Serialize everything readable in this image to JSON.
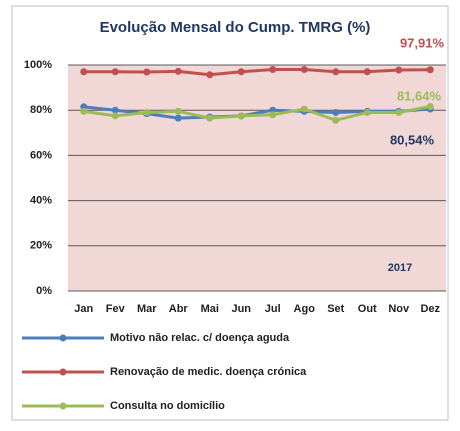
{
  "chart_data": {
    "type": "line",
    "title": "Evolução Mensal do Cump. TMRG (%)",
    "annotation": "2017",
    "categories": [
      "Jan",
      "Fev",
      "Mar",
      "Abr",
      "Mai",
      "Jun",
      "Jul",
      "Ago",
      "Set",
      "Out",
      "Nov",
      "Dez"
    ],
    "series": [
      {
        "name": "Motivo não relac. c/ doença aguda",
        "color": "#4a7ebb",
        "label_color": "#1f3864",
        "values": [
          81.5,
          80,
          78.5,
          76.5,
          77,
          77.5,
          80,
          79.5,
          79,
          79.5,
          79.5,
          80.54
        ],
        "value_labels": [
          null,
          null,
          null,
          null,
          null,
          null,
          null,
          null,
          null,
          null,
          null,
          "80,54%"
        ]
      },
      {
        "name": "Renovação de medic. doença crónica",
        "color": "#c0504d",
        "label_color": "#c0504d",
        "values": [
          97,
          97,
          96.9,
          97.2,
          95.7,
          97,
          98,
          98,
          97,
          97,
          97.8,
          97.91
        ],
        "value_labels": [
          null,
          null,
          null,
          null,
          null,
          null,
          null,
          null,
          null,
          null,
          null,
          "97,91%"
        ]
      },
      {
        "name": "Consulta no domicílio",
        "color": "#9bbb59",
        "label_color": "#9bbb59",
        "values": [
          79.5,
          77.5,
          79,
          79.5,
          76.5,
          77.5,
          78,
          80.5,
          75.5,
          79,
          79,
          81.64
        ],
        "value_labels": [
          null,
          null,
          null,
          null,
          null,
          null,
          null,
          null,
          null,
          null,
          null,
          "81,64%"
        ]
      }
    ],
    "ylim": [
      0,
      100
    ],
    "yticks": [
      {
        "value": 0,
        "label": "0%"
      },
      {
        "value": 20,
        "label": "20%"
      },
      {
        "value": 40,
        "label": "40%"
      },
      {
        "value": 60,
        "label": "60%"
      },
      {
        "value": 80,
        "label": "80%"
      },
      {
        "value": 100,
        "label": "100%"
      }
    ],
    "grid": true,
    "legend": "bottom"
  }
}
